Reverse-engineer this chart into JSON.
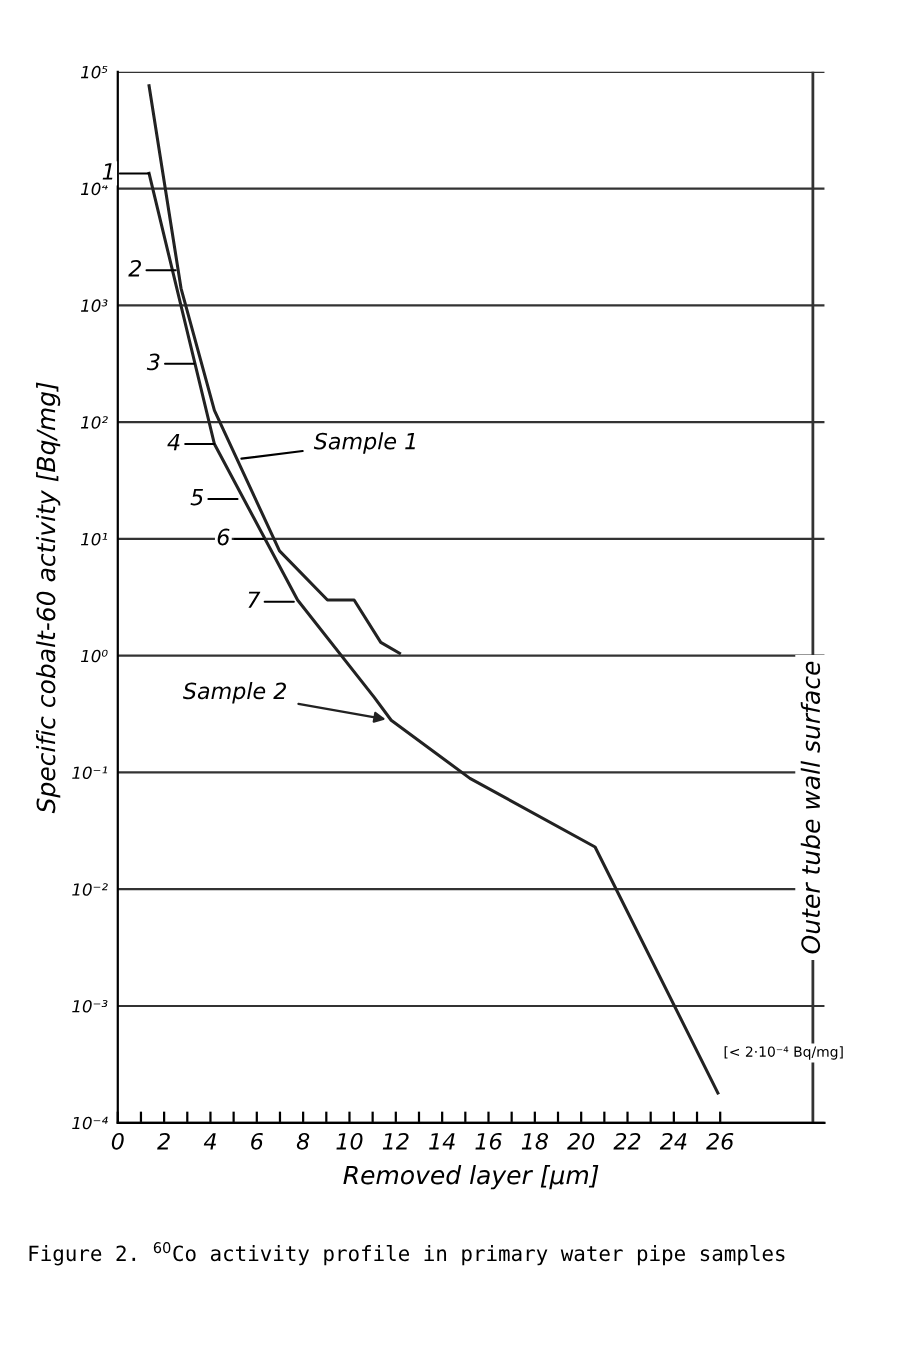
{
  "chart_data": {
    "type": "line",
    "xlabel": "Removed layer [µm]",
    "ylabel": "Specific cobalt-60 activity [Bq/mg]",
    "title": "Figure 2. $^{60}$Co activity profile in primary water pipe samples",
    "log": "y",
    "grid": "y",
    "xlim": [
      0,
      30.5
    ],
    "xticks": [
      0,
      {
        "value": 1,
        "label": null
      },
      2,
      {
        "value": 3,
        "label": null
      },
      4,
      {
        "value": 5,
        "label": null
      },
      6,
      {
        "value": 7,
        "label": null
      },
      8,
      {
        "value": 9,
        "label": null
      },
      10,
      {
        "value": 11,
        "label": null
      },
      12,
      {
        "value": 13,
        "label": null
      },
      14,
      {
        "value": 15,
        "label": null
      },
      16,
      {
        "value": 17,
        "label": null
      },
      18,
      {
        "value": 19,
        "label": null
      },
      20,
      {
        "value": 21,
        "label": null
      },
      22,
      {
        "value": 23,
        "label": null
      },
      24,
      {
        "value": 25,
        "label": null
      },
      26
    ],
    "ylim": [
      0.0001,
      100000
    ],
    "yticks": [
      {
        "value": 0.0001,
        "label": "10⁻⁴"
      },
      {
        "value": 0.001,
        "label": "10⁻³"
      },
      {
        "value": 0.01,
        "label": "10⁻²"
      },
      {
        "value": 0.1,
        "label": "10⁻¹"
      },
      {
        "value": 1,
        "label": "10⁰"
      },
      {
        "value": 10,
        "label": "10¹"
      },
      {
        "value": 100,
        "label": "10²"
      },
      {
        "value": 1000,
        "label": "10³"
      },
      {
        "value": 10000,
        "label": "10⁴"
      },
      {
        "value": 100000,
        "label": "10⁵"
      }
    ],
    "series": [
      {
        "color": "#222222",
        "x": [
          1.35,
          2.73,
          4.17,
          6.98,
          9.05,
          10.2,
          11.35,
          12.16
        ],
        "values": [
          76000,
          1400,
          126,
          7.9,
          3.0,
          3.0,
          1.3,
          1.05
        ]
      },
      {
        "color": "#222222",
        "x": [
          1.35,
          4.17,
          7.76,
          11.07,
          11.8,
          15.2,
          20.6,
          25.9
        ],
        "values": [
          13500,
          65,
          3.0,
          0.44,
          0.28,
          0.089,
          0.023,
          0.00018
        ]
      }
    ],
    "ref_lines": [
      {
        "axis": "x",
        "value": 30,
        "label": "Outer tube wall surface"
      }
    ],
    "annotations": [
      {
        "text": "Sample 1",
        "x": 5.1,
        "y": 48
      },
      {
        "text": "Sample 2",
        "x": 11.8,
        "y": 0.28
      },
      {
        "text": "[< 2·10⁻⁴ Bq/mg]",
        "x": 25.9,
        "y": 0.00018
      },
      {
        "text": "1",
        "x": 1.35,
        "y": 13500
      },
      {
        "text": "2",
        "x": 2.5,
        "y": 2000
      },
      {
        "text": "3",
        "x": 3.3,
        "y": 316
      },
      {
        "text": "4",
        "x": 4.17,
        "y": 65
      },
      {
        "text": "5",
        "x": 5.17,
        "y": 22
      },
      {
        "text": "6",
        "x": 6.3,
        "y": 10
      },
      {
        "text": "7",
        "x": 7.6,
        "y": 2.9
      }
    ]
  }
}
